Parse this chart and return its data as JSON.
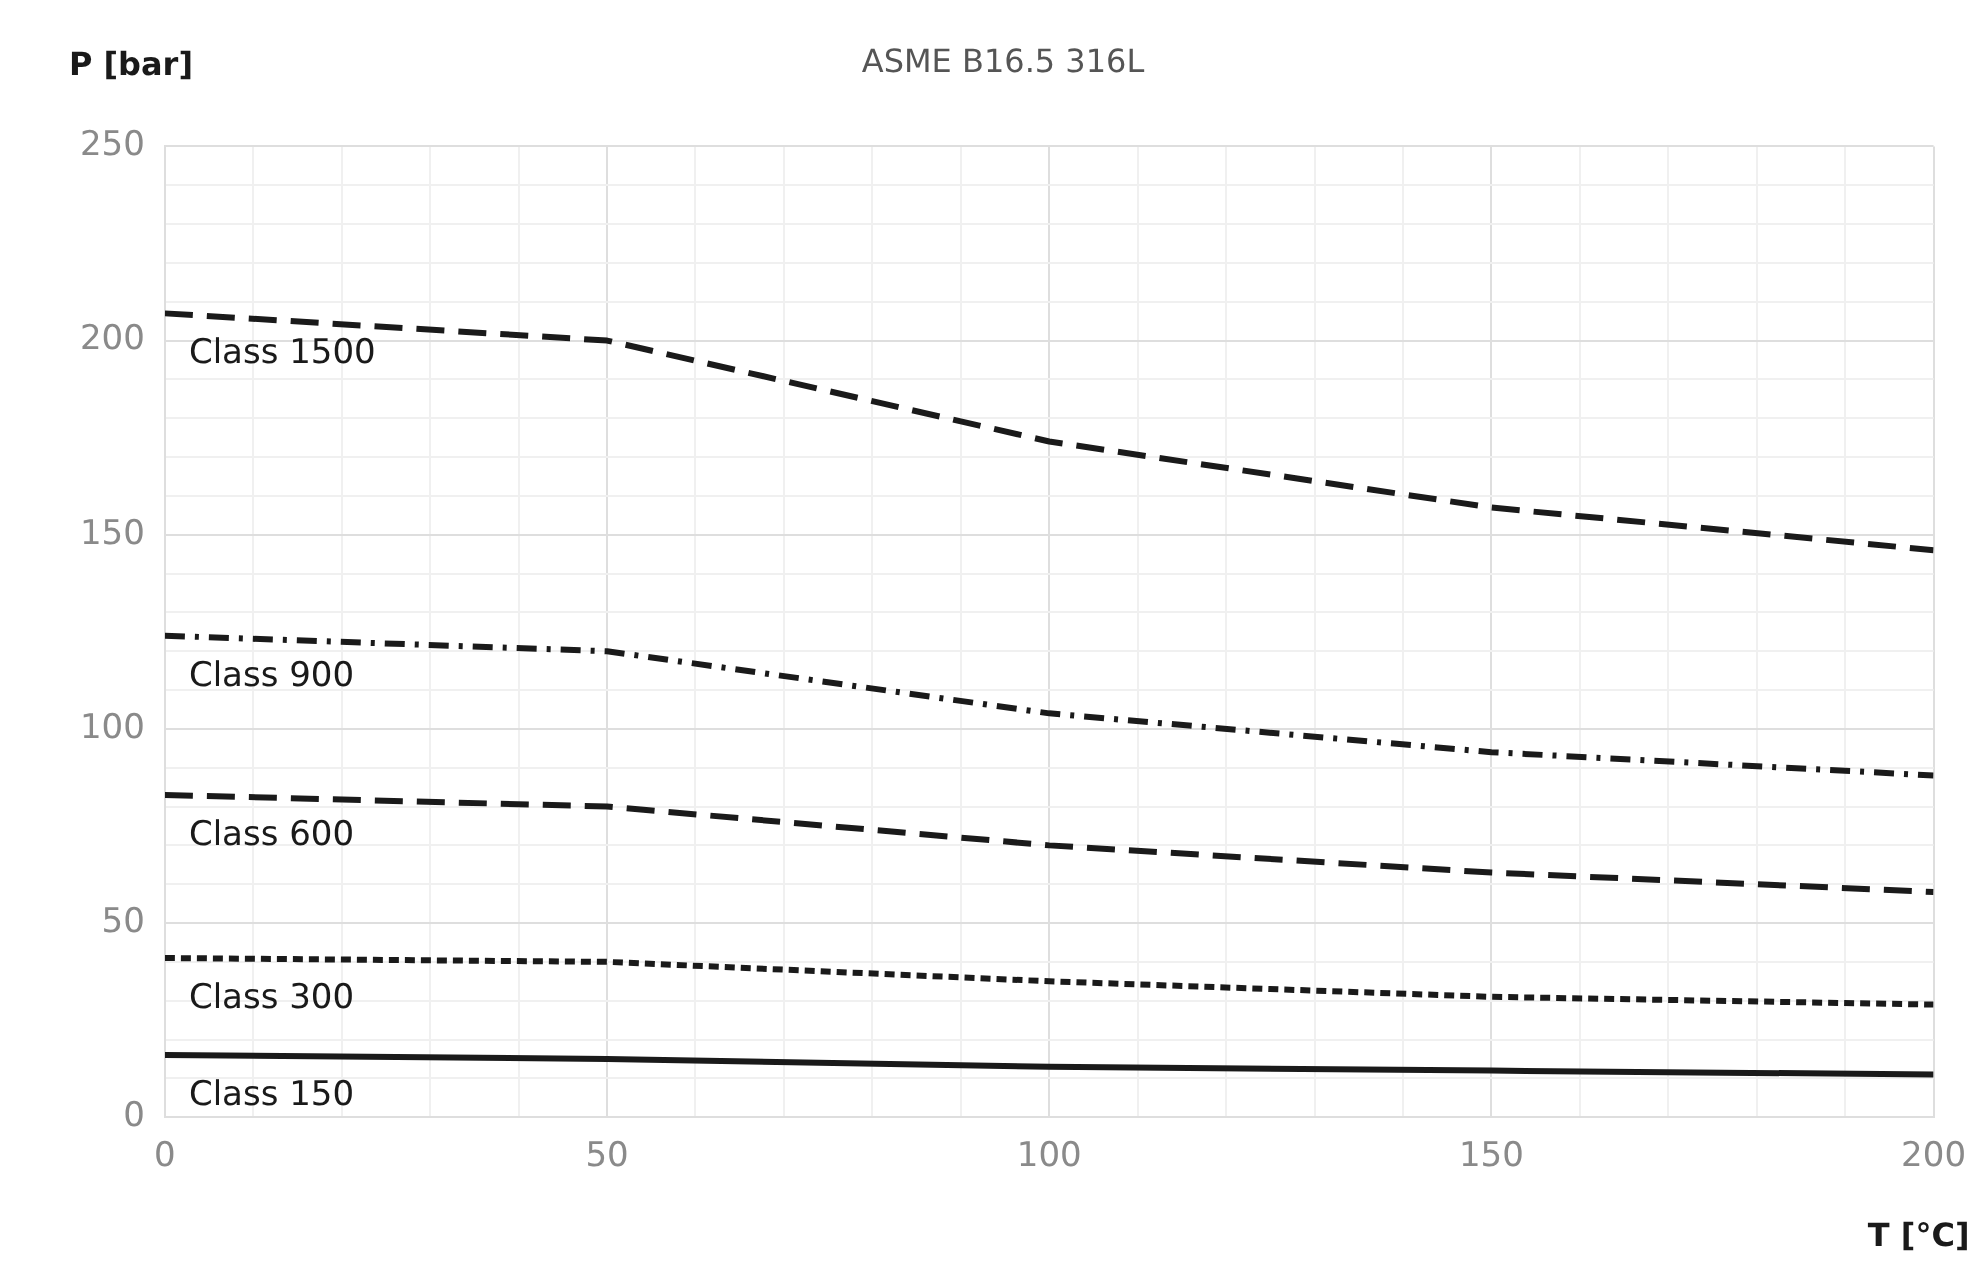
{
  "chart_data": {
    "type": "line",
    "title": "ASME B16.5 316L",
    "xlabel": "T [°C]",
    "ylabel": "P [bar]",
    "x": [
      0,
      50,
      100,
      150,
      200
    ],
    "series": [
      {
        "name": "Class 1500",
        "color": "#1a1a1a",
        "line_style": "dashed",
        "values": [
          207,
          200,
          174,
          157,
          146
        ]
      },
      {
        "name": "Class 900",
        "color": "#1a1a1a",
        "line_style": "dashdot",
        "values": [
          124,
          120,
          104,
          94,
          88
        ]
      },
      {
        "name": "Class 600",
        "color": "#1a1a1a",
        "line_style": "dashed",
        "values": [
          83,
          80,
          70,
          63,
          58
        ]
      },
      {
        "name": "Class 300",
        "color": "#1a1a1a",
        "line_style": "dotted",
        "values": [
          41,
          40,
          35,
          31,
          29
        ]
      },
      {
        "name": "Class 150",
        "color": "#1a1a1a",
        "line_style": "solid",
        "values": [
          16,
          15,
          13,
          12,
          11
        ]
      }
    ],
    "xlim": [
      0,
      200
    ],
    "xticks": [
      0,
      {
        "value": 10,
        "label": null
      },
      {
        "value": 20,
        "label": null
      },
      {
        "value": 30,
        "label": null
      },
      {
        "value": 40,
        "label": null
      },
      50,
      {
        "value": 60,
        "label": null
      },
      {
        "value": 70,
        "label": null
      },
      {
        "value": 80,
        "label": null
      },
      {
        "value": 90,
        "label": null
      },
      100,
      {
        "value": 110,
        "label": null
      },
      {
        "value": 120,
        "label": null
      },
      {
        "value": 130,
        "label": null
      },
      {
        "value": 140,
        "label": null
      },
      150,
      {
        "value": 160,
        "label": null
      },
      {
        "value": 170,
        "label": null
      },
      {
        "value": 180,
        "label": null
      },
      {
        "value": 190,
        "label": null
      },
      200
    ],
    "ylim": [
      0,
      250
    ],
    "yticks": [
      0,
      {
        "value": 10,
        "label": null
      },
      {
        "value": 20,
        "label": null
      },
      {
        "value": 30,
        "label": null
      },
      {
        "value": 40,
        "label": null
      },
      50,
      {
        "value": 60,
        "label": null
      },
      {
        "value": 70,
        "label": null
      },
      {
        "value": 80,
        "label": null
      },
      {
        "value": 90,
        "label": null
      },
      100,
      {
        "value": 110,
        "label": null
      },
      {
        "value": 120,
        "label": null
      },
      {
        "value": 130,
        "label": null
      },
      {
        "value": 140,
        "label": null
      },
      150,
      {
        "value": 160,
        "label": null
      },
      {
        "value": 170,
        "label": null
      },
      {
        "value": 180,
        "label": null
      },
      {
        "value": 190,
        "label": null
      },
      200,
      {
        "value": 210,
        "label": null
      },
      {
        "value": 220,
        "label": null
      },
      {
        "value": 230,
        "label": null
      },
      {
        "value": 240,
        "label": null
      },
      250
    ],
    "grid": true,
    "legend": false,
    "marker": "none"
  }
}
